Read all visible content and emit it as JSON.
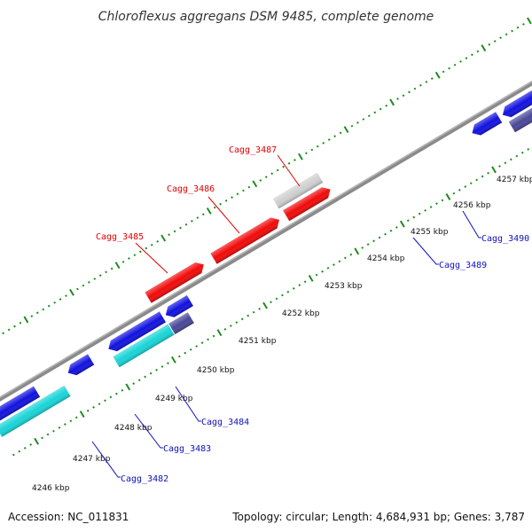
{
  "title": "Chloroflexus aggregans DSM 9485, complete genome",
  "footer": {
    "accession": "Accession: NC_011831",
    "summary": "Topology: circular; Length: 4,684,931 bp; Genes: 3,787"
  },
  "colors": {
    "backbone": "#8a8a8a",
    "tick_dots": "#1e8a1e",
    "label_top": "#e00000",
    "label_bottom": "#1010c0",
    "gene_red": "#f20a0a",
    "gene_blue": "#1212e0",
    "gene_cyan": "#19d5d8",
    "gene_slate": "#4a4898",
    "gene_gray": "#d0d0d0",
    "gene_darkgray": "#6e6e6e"
  },
  "tick_labels": [
    "4246 kbp",
    "4247 kbp",
    "4248 kbp",
    "4249 kbp",
    "4250 kbp",
    "4251 kbp",
    "4252 kbp",
    "4253 kbp",
    "4254 kbp",
    "4255 kbp",
    "4256 kbp",
    "4257 kbp"
  ],
  "gene_labels": {
    "top": [
      "Cagg_3485",
      "Cagg_3486",
      "Cagg_3487"
    ],
    "bottom": [
      "Cagg_3482",
      "Cagg_3483",
      "Cagg_3484",
      "Cagg_3489",
      "Cagg_3490"
    ]
  }
}
